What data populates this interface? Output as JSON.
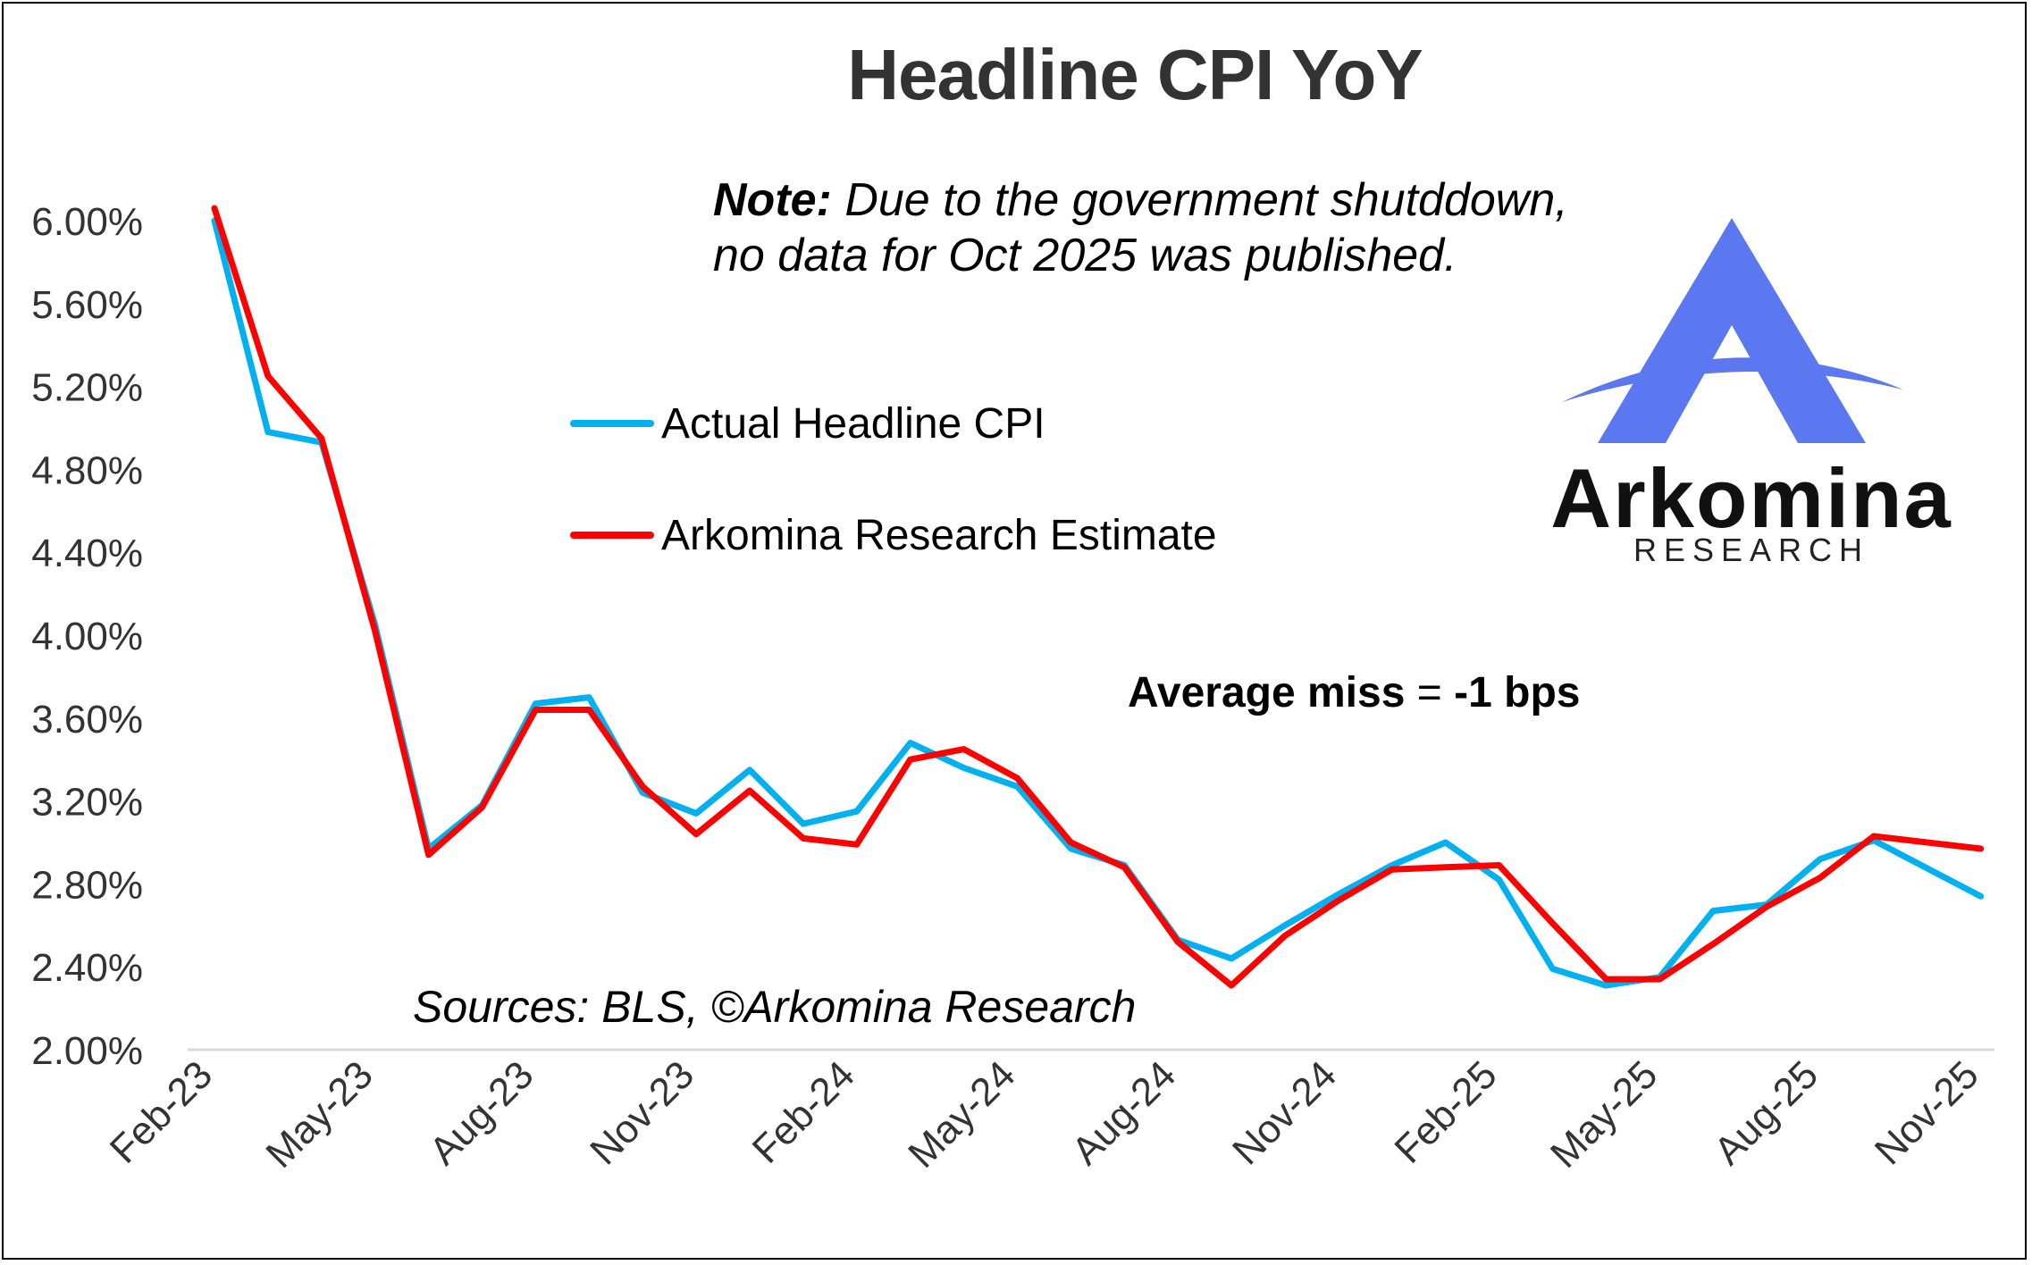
{
  "title": "Headline CPI YoY",
  "note": {
    "bold": "Note:",
    "line1": " Due to the government shutddown,",
    "line2": "no data for Oct 2025 was published."
  },
  "annotation": {
    "bold1": "Average miss",
    "mid": " = ",
    "bold2": "-1 bps"
  },
  "sources": "Sources: BLS, ©Arkomina Research",
  "logo": {
    "word": "Arkomina",
    "sub": "RESEARCH",
    "color": "#5b78f0"
  },
  "chart_data": {
    "type": "line",
    "title": "Headline CPI YoY",
    "xlabel": "",
    "ylabel": "",
    "ylim": [
      2.0,
      6.0
    ],
    "yticks": [
      "2.00%",
      "2.40%",
      "2.80%",
      "3.20%",
      "3.60%",
      "4.00%",
      "4.40%",
      "4.80%",
      "5.20%",
      "5.60%",
      "6.00%"
    ],
    "xtick_labels": [
      "Feb-23",
      "May-23",
      "Aug-23",
      "Nov-23",
      "Feb-24",
      "May-24",
      "Aug-24",
      "Nov-24",
      "Feb-25",
      "May-25",
      "Aug-25",
      "Nov-25"
    ],
    "categories": [
      "Feb-23",
      "Mar-23",
      "Apr-23",
      "May-23",
      "Jun-23",
      "Jul-23",
      "Aug-23",
      "Sep-23",
      "Oct-23",
      "Nov-23",
      "Dec-23",
      "Jan-24",
      "Feb-24",
      "Mar-24",
      "Apr-24",
      "May-24",
      "Jun-24",
      "Jul-24",
      "Aug-24",
      "Sep-24",
      "Oct-24",
      "Nov-24",
      "Dec-24",
      "Jan-25",
      "Feb-25",
      "Mar-25",
      "Apr-25",
      "May-25",
      "Jun-25",
      "Jul-25",
      "Aug-25",
      "Sep-25",
      "Oct-25",
      "Nov-25"
    ],
    "series": [
      {
        "name": "Actual Headline CPI",
        "color": "#00b0f0",
        "values": [
          6.0,
          4.98,
          4.93,
          4.05,
          2.97,
          3.18,
          3.67,
          3.7,
          3.24,
          3.14,
          3.35,
          3.09,
          3.15,
          3.48,
          3.36,
          3.27,
          2.97,
          2.89,
          2.53,
          2.44,
          2.6,
          2.75,
          2.89,
          3.0,
          2.82,
          2.39,
          2.31,
          2.35,
          2.67,
          2.7,
          2.92,
          3.01,
          null,
          2.74
        ]
      },
      {
        "name": "Arkomina Research Estimate",
        "color": "#ff0000",
        "values": [
          6.06,
          5.25,
          4.95,
          4.02,
          2.94,
          3.17,
          3.64,
          3.64,
          3.27,
          3.04,
          3.25,
          3.02,
          2.99,
          3.4,
          3.45,
          3.31,
          3.0,
          2.88,
          2.52,
          2.31,
          2.55,
          2.72,
          2.87,
          2.88,
          2.89,
          2.61,
          2.34,
          2.34,
          2.51,
          2.69,
          2.83,
          3.03,
          null,
          2.97
        ]
      }
    ],
    "legend": "upper-middle",
    "grid": false
  }
}
